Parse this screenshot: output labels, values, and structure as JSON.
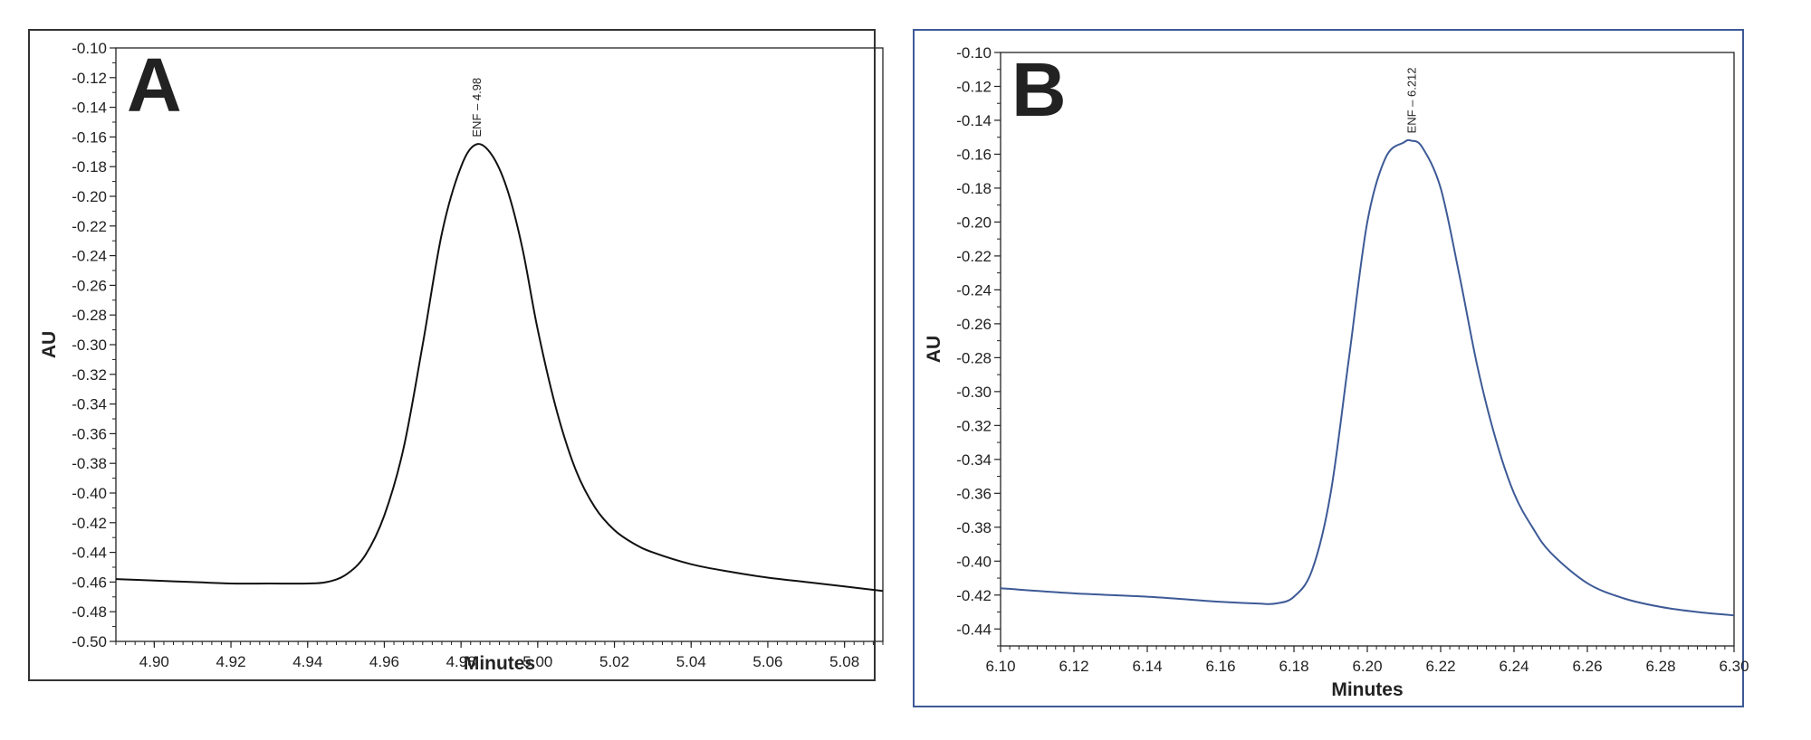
{
  "chart_data": [
    {
      "type": "line",
      "panel_label": "A",
      "xlabel": "Minutes",
      "ylabel": "AU",
      "xlim": [
        4.89,
        5.09
      ],
      "ylim": [
        -0.5,
        -0.1
      ],
      "x_ticks": [
        "4.90",
        "4.92",
        "4.94",
        "4.96",
        "4.98",
        "5.00",
        "5.02",
        "5.04",
        "5.06",
        "5.08"
      ],
      "y_ticks": [
        "-0.10",
        "-0.12",
        "-0.14",
        "-0.16",
        "-0.18",
        "-0.20",
        "-0.22",
        "-0.24",
        "-0.26",
        "-0.28",
        "-0.30",
        "-0.32",
        "-0.34",
        "-0.36",
        "-0.38",
        "-0.40",
        "-0.42",
        "-0.44",
        "-0.46",
        "-0.48",
        "-0.50"
      ],
      "line_color": "#111111",
      "frame_color": "#333333",
      "grid": false,
      "annotations": [
        {
          "text": "ENF – 4.98",
          "x": 4.984,
          "y": -0.165
        }
      ],
      "series": [
        {
          "x": [
            4.89,
            4.9,
            4.91,
            4.92,
            4.93,
            4.94,
            4.945,
            4.95,
            4.955,
            4.96,
            4.965,
            4.97,
            4.975,
            4.98,
            4.984,
            4.988,
            4.992,
            4.996,
            5.0,
            5.005,
            5.01,
            5.015,
            5.02,
            5.025,
            5.03,
            5.04,
            5.05,
            5.06,
            5.07,
            5.08,
            5.09
          ],
          "y": [
            -0.458,
            -0.459,
            -0.46,
            -0.461,
            -0.461,
            -0.461,
            -0.46,
            -0.455,
            -0.442,
            -0.415,
            -0.37,
            -0.3,
            -0.225,
            -0.18,
            -0.165,
            -0.172,
            -0.195,
            -0.235,
            -0.29,
            -0.345,
            -0.385,
            -0.41,
            -0.425,
            -0.434,
            -0.44,
            -0.448,
            -0.453,
            -0.457,
            -0.46,
            -0.463,
            -0.466
          ]
        }
      ]
    },
    {
      "type": "line",
      "panel_label": "B",
      "xlabel": "Minutes",
      "ylabel": "AU",
      "xlim": [
        6.1,
        6.3
      ],
      "ylim": [
        -0.45,
        -0.1
      ],
      "x_ticks": [
        "6.10",
        "6.12",
        "6.14",
        "6.16",
        "6.18",
        "6.20",
        "6.22",
        "6.24",
        "6.26",
        "6.28",
        "6.30"
      ],
      "y_ticks": [
        "-0.10",
        "-0.12",
        "-0.14",
        "-0.16",
        "-0.18",
        "-0.20",
        "-0.22",
        "-0.24",
        "-0.26",
        "-0.28",
        "-0.30",
        "-0.32",
        "-0.34",
        "-0.36",
        "-0.38",
        "-0.40",
        "-0.42",
        "-0.44"
      ],
      "line_color": "#3d5a96",
      "frame_color": "#3d5a96",
      "grid": false,
      "annotations": [
        {
          "text": "ENF – 6.212",
          "x": 6.212,
          "y": -0.152
        }
      ],
      "series": [
        {
          "x": [
            6.1,
            6.12,
            6.14,
            6.16,
            6.17,
            6.175,
            6.18,
            6.185,
            6.19,
            6.195,
            6.2,
            6.205,
            6.21,
            6.212,
            6.215,
            6.22,
            6.225,
            6.23,
            6.235,
            6.24,
            6.245,
            6.25,
            6.26,
            6.27,
            6.28,
            6.29,
            6.3
          ],
          "y": [
            -0.416,
            -0.419,
            -0.421,
            -0.424,
            -0.425,
            -0.425,
            -0.421,
            -0.405,
            -0.36,
            -0.28,
            -0.2,
            -0.162,
            -0.153,
            -0.152,
            -0.156,
            -0.18,
            -0.23,
            -0.285,
            -0.328,
            -0.36,
            -0.38,
            -0.395,
            -0.413,
            -0.422,
            -0.427,
            -0.43,
            -0.432
          ]
        }
      ]
    }
  ]
}
